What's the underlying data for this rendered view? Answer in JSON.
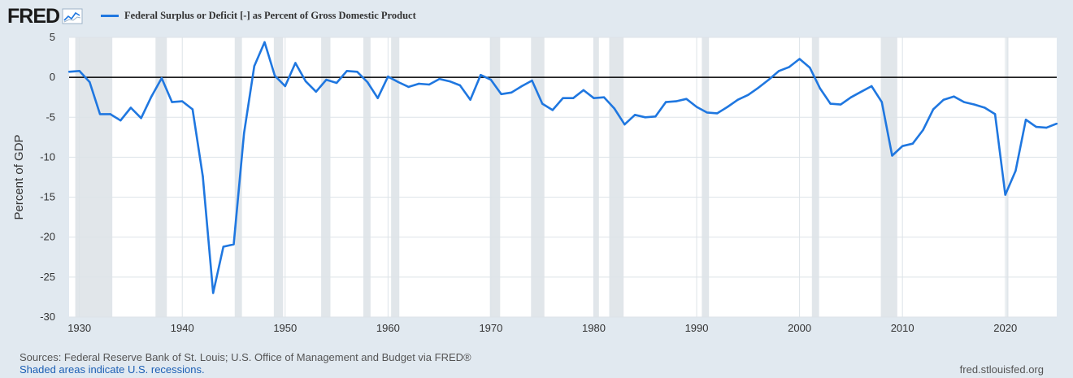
{
  "header": {
    "logo": "FRED",
    "legend_label": "Federal Surplus or Deficit [-] as Percent of Gross Domestic Product"
  },
  "footer": {
    "sources": "Sources: Federal Reserve Bank of St. Louis; U.S. Office of Management and Budget via FRED®",
    "recession_note": "Shaded areas indicate U.S. recessions.",
    "site": "fred.stlouisfed.org"
  },
  "colors": {
    "series": "#1f77e0",
    "plot_bg": "#ffffff",
    "page_bg": "#e1e9f0",
    "recession": "#e1e6ea",
    "grid": "#dde3e8",
    "zero_line": "#000000"
  },
  "chart_data": {
    "type": "line",
    "title": "Federal Surplus or Deficit [-] as Percent of Gross Domestic Product",
    "xlabel": "",
    "ylabel": "Percent of GDP",
    "xlim": [
      1929,
      2025
    ],
    "ylim": [
      -30,
      5
    ],
    "yticks": [
      5,
      0,
      -5,
      -10,
      -15,
      -20,
      -25,
      -30
    ],
    "xticks": [
      1930,
      1940,
      1950,
      1960,
      1970,
      1980,
      1990,
      2000,
      2010,
      2020
    ],
    "grid": true,
    "legend_position": "top-left",
    "zero_line": 0,
    "recessions": [
      [
        1929.6,
        1933.2
      ],
      [
        1937.4,
        1938.5
      ],
      [
        1945.1,
        1945.8
      ],
      [
        1948.9,
        1949.8
      ],
      [
        1953.5,
        1954.4
      ],
      [
        1957.6,
        1958.3
      ],
      [
        1960.3,
        1961.1
      ],
      [
        1969.9,
        1970.9
      ],
      [
        1973.9,
        1975.2
      ],
      [
        1980.0,
        1980.5
      ],
      [
        1981.5,
        1982.9
      ],
      [
        1990.5,
        1991.2
      ],
      [
        2001.2,
        2001.9
      ],
      [
        2007.9,
        2009.5
      ],
      [
        2020.1,
        2020.3
      ]
    ],
    "series": [
      {
        "name": "Federal Surplus or Deficit [-] as Percent of Gross Domestic Product",
        "x": [
          1929,
          1930,
          1931,
          1932,
          1933,
          1934,
          1935,
          1936,
          1937,
          1938,
          1939,
          1940,
          1941,
          1942,
          1943,
          1944,
          1945,
          1946,
          1947,
          1948,
          1949,
          1950,
          1951,
          1952,
          1953,
          1954,
          1955,
          1956,
          1957,
          1958,
          1959,
          1960,
          1961,
          1962,
          1963,
          1964,
          1965,
          1966,
          1967,
          1968,
          1969,
          1970,
          1971,
          1972,
          1973,
          1974,
          1975,
          1976,
          1977,
          1978,
          1979,
          1980,
          1981,
          1982,
          1983,
          1984,
          1985,
          1986,
          1987,
          1988,
          1989,
          1990,
          1991,
          1992,
          1993,
          1994,
          1995,
          1996,
          1997,
          1998,
          1999,
          2000,
          2001,
          2002,
          2003,
          2004,
          2005,
          2006,
          2007,
          2008,
          2009,
          2010,
          2011,
          2012,
          2013,
          2014,
          2015,
          2016,
          2017,
          2018,
          2019,
          2020,
          2021,
          2022,
          2023,
          2024,
          2025
        ],
        "values": [
          0.7,
          0.8,
          -0.6,
          -4.6,
          -4.6,
          -5.4,
          -3.8,
          -5.1,
          -2.4,
          -0.1,
          -3.1,
          -3.0,
          -4.0,
          -12.4,
          -27.0,
          -21.2,
          -20.9,
          -7.0,
          1.4,
          4.4,
          0.2,
          -1.1,
          1.8,
          -0.5,
          -1.8,
          -0.3,
          -0.7,
          0.8,
          0.7,
          -0.6,
          -2.6,
          0.1,
          -0.6,
          -1.2,
          -0.8,
          -0.9,
          -0.2,
          -0.5,
          -1.0,
          -2.8,
          0.3,
          -0.3,
          -2.1,
          -1.9,
          -1.1,
          -0.4,
          -3.3,
          -4.1,
          -2.6,
          -2.6,
          -1.6,
          -2.6,
          -2.5,
          -3.9,
          -5.9,
          -4.7,
          -5.0,
          -4.9,
          -3.1,
          -3.0,
          -2.7,
          -3.7,
          -4.4,
          -4.5,
          -3.7,
          -2.8,
          -2.2,
          -1.3,
          -0.3,
          0.8,
          1.3,
          2.3,
          1.2,
          -1.4,
          -3.3,
          -3.4,
          -2.5,
          -1.8,
          -1.1,
          -3.1,
          -9.8,
          -8.6,
          -8.3,
          -6.6,
          -4.0,
          -2.8,
          -2.4,
          -3.1,
          -3.4,
          -3.8,
          -4.6,
          -14.7,
          -11.7,
          -5.3,
          -6.2,
          -6.3,
          -5.8
        ]
      }
    ]
  }
}
